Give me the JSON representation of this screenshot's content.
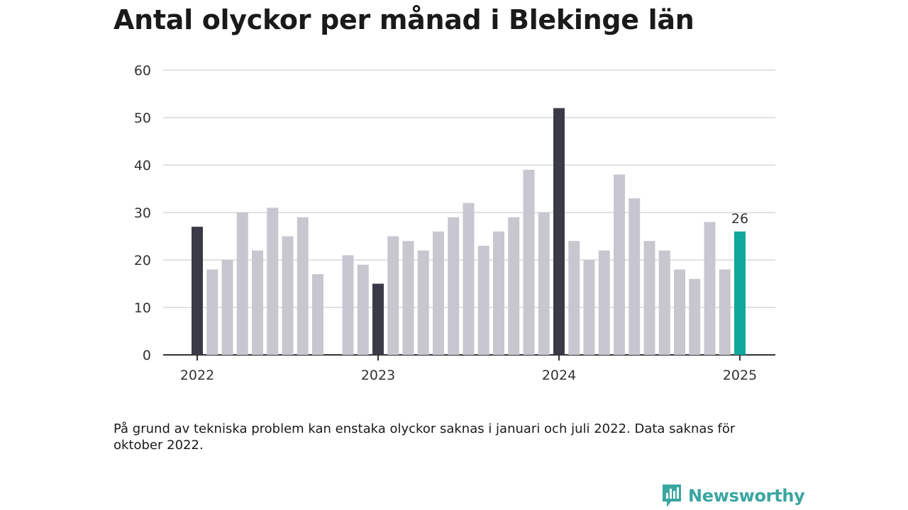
{
  "title": "Antal olyckor per månad i Blekinge län",
  "note": "På grund av tekniska problem kan enstaka olyckor saknas i januari och juli 2022. Data saknas för oktober 2022.",
  "brand": {
    "name": "Newsworthy",
    "icon": "newsworthy-logo-icon"
  },
  "colors": {
    "bar_default": "#c8c7cf",
    "bar_january": "#3b3b47",
    "bar_latest": "#0fa89b",
    "grid": "#d9d9d9",
    "axis": "#333333"
  },
  "chart_data": {
    "type": "bar",
    "x": [
      "2022-01",
      "2022-02",
      "2022-03",
      "2022-04",
      "2022-05",
      "2022-06",
      "2022-07",
      "2022-08",
      "2022-09",
      "2022-10",
      "2022-11",
      "2022-12",
      "2023-01",
      "2023-02",
      "2023-03",
      "2023-04",
      "2023-05",
      "2023-06",
      "2023-07",
      "2023-08",
      "2023-09",
      "2023-10",
      "2023-11",
      "2023-12",
      "2024-01",
      "2024-02",
      "2024-03",
      "2024-04",
      "2024-05",
      "2024-06",
      "2024-07",
      "2024-08",
      "2024-09",
      "2024-10",
      "2024-11",
      "2024-12",
      "2025-01"
    ],
    "values": [
      27,
      18,
      20,
      30,
      22,
      31,
      25,
      29,
      17,
      null,
      21,
      19,
      15,
      25,
      24,
      22,
      26,
      29,
      32,
      23,
      26,
      29,
      39,
      30,
      52,
      24,
      20,
      22,
      38,
      33,
      24,
      22,
      18,
      16,
      28,
      18,
      26
    ],
    "highlight": [
      "2022-01",
      "2023-01",
      "2024-01"
    ],
    "latest": "2025-01",
    "latest_label": "26",
    "xticks": [
      "2022",
      "2023",
      "2024",
      "2025"
    ],
    "yticks": [
      "0",
      "10",
      "20",
      "30",
      "40",
      "50",
      "60"
    ],
    "ylim": [
      0,
      60
    ],
    "grid": true,
    "xlabel": "",
    "ylabel": ""
  }
}
